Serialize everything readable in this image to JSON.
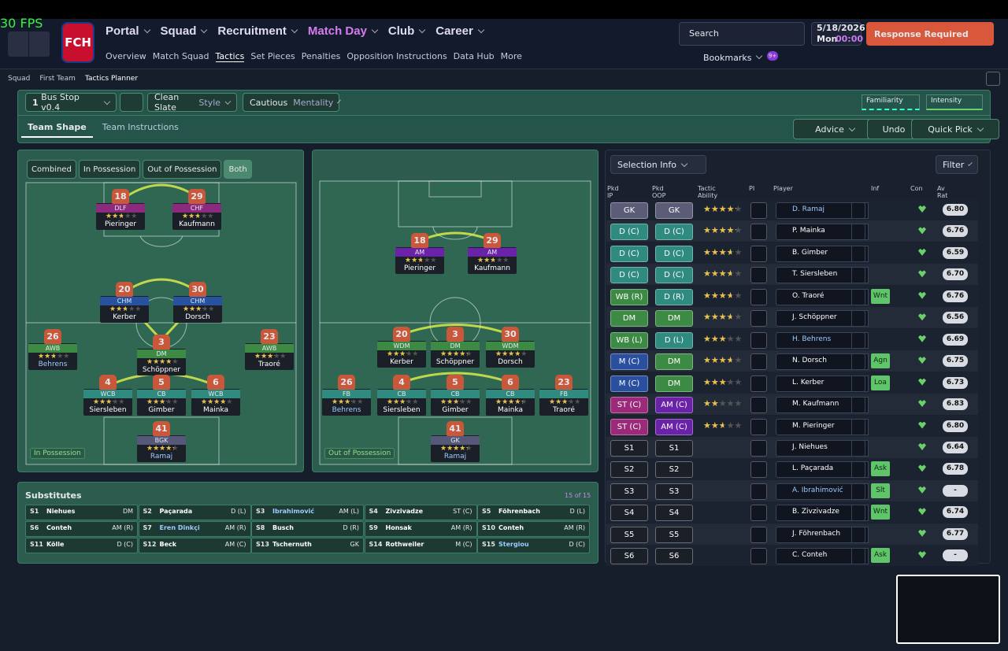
{
  "fps": "30 FPS",
  "header": {
    "club_logo": "FCH",
    "nav": [
      "Portal",
      "Squad",
      "Recruitment",
      "Match Day",
      "Club",
      "Career"
    ],
    "nav_active": 3,
    "subnav": [
      "Overview",
      "Match Squad",
      "Tactics",
      "Set Pieces",
      "Penalties",
      "Opposition Instructions",
      "Data Hub",
      "More"
    ],
    "subnav_active": 2,
    "search": "Search",
    "date": "5/18/2026",
    "day": "Mon",
    "time": "00:00",
    "alert": "Response Required",
    "bookmarks": "Bookmarks",
    "badge": "9+"
  },
  "breadcrumb": [
    "Squad",
    "First Team",
    "Tactics Planner"
  ],
  "toolbar": {
    "slot": "1",
    "tactic": "Bus Stop v0.4",
    "style": "Clean Slate",
    "style_label": "Style",
    "mentality": "Cautious",
    "mentality_label": "Mentality",
    "familiarity": "Familiarity",
    "intensity": "Intensity"
  },
  "tabs": [
    "Team Shape",
    "Team Instructions"
  ],
  "actions": [
    "Advice",
    "Undo",
    "Quick Pick"
  ],
  "shape_filters": [
    "Combined",
    "In Possession",
    "Out of Possession",
    "Both"
  ],
  "pitches": [
    {
      "label": "In Possession",
      "players": [
        {
          "number": "18",
          "role": "DLF",
          "name": "Pieringer",
          "stars": 2.5,
          "color": "#8c2a7e"
        },
        {
          "number": "29",
          "role": "CHF",
          "name": "Kaufmann",
          "stars": 2.5,
          "color": "#8c2a7e"
        },
        {
          "number": "20",
          "role": "CHM",
          "name": "Kerber",
          "stars": 2.5,
          "color": "#2652a0"
        },
        {
          "number": "30",
          "role": "CHM",
          "name": "Dorsch",
          "stars": 3,
          "color": "#2652a0"
        },
        {
          "number": "26",
          "role": "AWB",
          "name": "Behrens",
          "stars": 2.5,
          "color": "#3d8a45",
          "highlight": true
        },
        {
          "number": "3",
          "role": "DM",
          "name": "Schöppner",
          "stars": 3.5,
          "color": "#3d8a45"
        },
        {
          "number": "23",
          "role": "AWB",
          "name": "Traoré",
          "stars": 3,
          "color": "#3d8a45"
        },
        {
          "number": "4",
          "role": "WCB",
          "name": "Siersleben",
          "stars": 3,
          "color": "#2f8a80"
        },
        {
          "number": "5",
          "role": "CB",
          "name": "Gimber",
          "stars": 3,
          "color": "#2f8a80"
        },
        {
          "number": "6",
          "role": "WCB",
          "name": "Mainka",
          "stars": 3.5,
          "color": "#2f8a80"
        },
        {
          "number": "41",
          "role": "BGK",
          "name": "Ramaj",
          "stars": 4,
          "color": "#555878",
          "highlight": true
        }
      ]
    },
    {
      "label": "Out of Possession",
      "players": [
        {
          "number": "18",
          "role": "AM",
          "name": "Pieringer",
          "stars": 2.5,
          "color": "#6a22a8"
        },
        {
          "number": "29",
          "role": "AM",
          "name": "Kaufmann",
          "stars": 2.5,
          "color": "#6a22a8"
        },
        {
          "number": "20",
          "role": "WDM",
          "name": "Kerber",
          "stars": 3,
          "color": "#3d8a45"
        },
        {
          "number": "3",
          "role": "DM",
          "name": "Schöppner",
          "stars": 4,
          "color": "#3d8a45"
        },
        {
          "number": "30",
          "role": "WDM",
          "name": "Dorsch",
          "stars": 3.5,
          "color": "#3d8a45"
        },
        {
          "number": "26",
          "role": "FB",
          "name": "Behrens",
          "stars": 3,
          "color": "#2f8a80",
          "highlight": true
        },
        {
          "number": "4",
          "role": "CB",
          "name": "Siersleben",
          "stars": 3,
          "color": "#2f8a80"
        },
        {
          "number": "5",
          "role": "CB",
          "name": "Gimber",
          "stars": 3,
          "color": "#2f8a80"
        },
        {
          "number": "6",
          "role": "CB",
          "name": "Mainka",
          "stars": 4,
          "color": "#2f8a80"
        },
        {
          "number": "23",
          "role": "FB",
          "name": "Traoré",
          "stars": 3,
          "color": "#2f8a80"
        },
        {
          "number": "41",
          "role": "GK",
          "name": "Ramaj",
          "stars": 4,
          "color": "#555878",
          "highlight": true
        }
      ]
    }
  ],
  "substitutes": {
    "title": "Substitutes",
    "count": "15 of 15",
    "list": [
      {
        "slot": "S1",
        "name": "Niehues",
        "position": "DM"
      },
      {
        "slot": "S2",
        "name": "Paçarada",
        "position": "D (L)"
      },
      {
        "slot": "S3",
        "name": "Ibrahimović",
        "position": "AM (L)",
        "highlight": true
      },
      {
        "slot": "S4",
        "name": "Zivzivadze",
        "position": "ST (C)"
      },
      {
        "slot": "S5",
        "name": "Föhrenbach",
        "position": "D (L)"
      },
      {
        "slot": "S6",
        "name": "Conteh",
        "position": "AM (R)"
      },
      {
        "slot": "S7",
        "name": "Eren Dinkçi",
        "position": "AM (R)",
        "highlight": true
      },
      {
        "slot": "S8",
        "name": "Busch",
        "position": "D (R)"
      },
      {
        "slot": "S9",
        "name": "Honsak",
        "position": "AM (R)"
      },
      {
        "slot": "S10",
        "name": "Conteh",
        "position": "AM (R)"
      },
      {
        "slot": "S11",
        "name": "Kölle",
        "position": "D (C)"
      },
      {
        "slot": "S12",
        "name": "Beck",
        "position": "AM (C)"
      },
      {
        "slot": "S13",
        "name": "Tschernuth",
        "position": "GK"
      },
      {
        "slot": "S14",
        "name": "Rothweiler",
        "position": "M (C)"
      },
      {
        "slot": "S15",
        "name": "Stergiou",
        "position": "D (C)",
        "highlight": true
      }
    ]
  },
  "selection": {
    "title": "Selection Info",
    "filter": "Filter",
    "columns": [
      "Pkd IP",
      "Pkd OOP",
      "Tactic Ability",
      "PI",
      "Player",
      "Inf",
      "Con",
      "Av Rat"
    ],
    "rows": [
      {
        "ip": "GK",
        "ip_color": "#5a5c78",
        "oop": "GK",
        "oop_color": "#5a5c78",
        "ability": 4,
        "player": "D. Ramaj",
        "highlight": true,
        "rating": "6.80"
      },
      {
        "ip": "D (C)",
        "ip_color": "#2f8a80",
        "oop": "D (C)",
        "oop_color": "#2f8a80",
        "ability": 4,
        "player": "P. Mainka",
        "rating": "6.76"
      },
      {
        "ip": "D (C)",
        "ip_color": "#2f8a80",
        "oop": "D (C)",
        "oop_color": "#2f8a80",
        "ability": 3.5,
        "player": "B. Gimber",
        "rating": "6.59"
      },
      {
        "ip": "D (C)",
        "ip_color": "#2f8a80",
        "oop": "D (C)",
        "oop_color": "#2f8a80",
        "ability": 3.5,
        "player": "T. Siersleben",
        "rating": "6.70"
      },
      {
        "ip": "WB (R)",
        "ip_color": "#3d8a45",
        "oop": "D (R)",
        "oop_color": "#2f8a80",
        "ability": 3.5,
        "player": "O. Traoré",
        "inf": "Wnt",
        "rating": "6.76"
      },
      {
        "ip": "DM",
        "ip_color": "#3d8a45",
        "oop": "DM",
        "oop_color": "#3d8a45",
        "ability": 3.5,
        "player": "J. Schöppner",
        "rating": "6.56"
      },
      {
        "ip": "WB (L)",
        "ip_color": "#3d8a45",
        "oop": "D (L)",
        "oop_color": "#2f8a80",
        "ability": 3,
        "player": "H. Behrens",
        "highlight": true,
        "rating": "6.69"
      },
      {
        "ip": "M (C)",
        "ip_color": "#2a4f9e",
        "oop": "DM",
        "oop_color": "#3d8a45",
        "ability": 3.5,
        "player": "N. Dorsch",
        "inf": "Agn",
        "rating": "6.75"
      },
      {
        "ip": "M (C)",
        "ip_color": "#2a4f9e",
        "oop": "DM",
        "oop_color": "#3d8a45",
        "ability": 3,
        "player": "L. Kerber",
        "inf": "Loa",
        "rating": "6.73"
      },
      {
        "ip": "ST (C)",
        "ip_color": "#9b2a7a",
        "oop": "AM (C)",
        "oop_color": "#6a22a8",
        "ability": 2,
        "player": "M. Kaufmann",
        "rating": "6.83"
      },
      {
        "ip": "ST (C)",
        "ip_color": "#9b2a7a",
        "oop": "AM (C)",
        "oop_color": "#6a22a8",
        "ability": 2.5,
        "player": "M. Pieringer",
        "rating": "6.80"
      },
      {
        "ip": "S1",
        "ip_color": "#1a1f28",
        "oop": "S1",
        "oop_color": "#1a1f28",
        "player": "J. Niehues",
        "rating": "6.64"
      },
      {
        "ip": "S2",
        "ip_color": "#1a1f28",
        "oop": "S2",
        "oop_color": "#1a1f28",
        "player": "L. Paçarada",
        "inf": "Ask",
        "rating": "6.78"
      },
      {
        "ip": "S3",
        "ip_color": "#1a1f28",
        "oop": "S3",
        "oop_color": "#1a1f28",
        "player": "A. Ibrahimović",
        "highlight": true,
        "inf": "Slt",
        "rating": "-"
      },
      {
        "ip": "S4",
        "ip_color": "#1a1f28",
        "oop": "S4",
        "oop_color": "#1a1f28",
        "player": "B. Zivzivadze",
        "inf": "Wnt",
        "rating": "6.74"
      },
      {
        "ip": "S5",
        "ip_color": "#1a1f28",
        "oop": "S5",
        "oop_color": "#1a1f28",
        "player": "J. Föhrenbach",
        "rating": "6.77"
      },
      {
        "ip": "S6",
        "ip_color": "#1a1f28",
        "oop": "S6",
        "oop_color": "#1a1f28",
        "player": "C. Conteh",
        "inf": "Ask",
        "rating": "-"
      }
    ]
  }
}
